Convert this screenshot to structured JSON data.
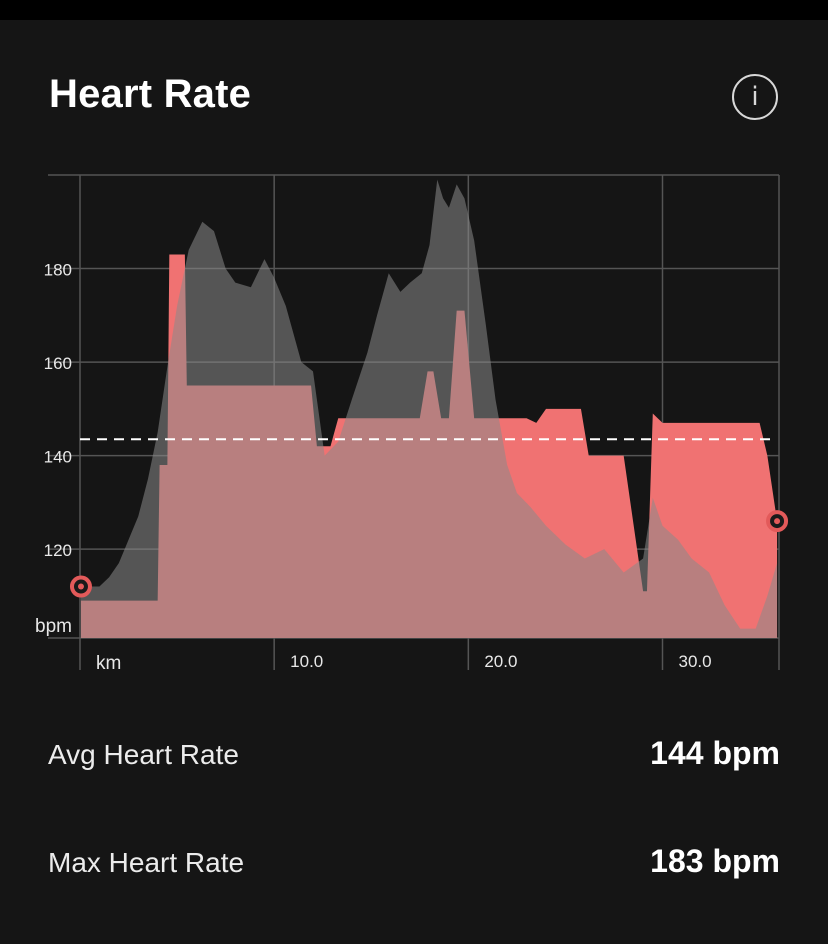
{
  "header": {
    "title": "Heart Rate",
    "info_icon": "i"
  },
  "colors": {
    "background": "#151515",
    "grid": "#555555",
    "hr_fill": "#f07272",
    "elevation_fill": "#8a8a8a",
    "avg_line": "#ffffff",
    "marker": "#e35a5a"
  },
  "chart_data": {
    "type": "area",
    "xlabel": "km",
    "ylabel": "bpm",
    "xlim": [
      0,
      36
    ],
    "ylim": [
      101,
      200
    ],
    "x_ticks": [
      10,
      20,
      30
    ],
    "x_tick_labels": [
      "10.0",
      "20.0",
      "30.0"
    ],
    "y_ticks": [
      120,
      140,
      160,
      180
    ],
    "y_tick_labels": [
      "120",
      "140",
      "160",
      "180"
    ],
    "grid": true,
    "avg_line": 143.5,
    "series": [
      {
        "role": "heart_rate",
        "x": [
          0.05,
          0.4,
          1.0,
          2.0,
          3.0,
          3.6,
          4.0,
          4.1,
          4.5,
          4.6,
          5.0,
          5.4,
          5.5,
          6.0,
          7.0,
          8.0,
          9.0,
          10.0,
          11.0,
          11.9,
          12.2,
          12.9,
          13.3,
          14.0,
          15.0,
          16.0,
          17.0,
          17.5,
          17.9,
          18.2,
          18.6,
          19.0,
          19.4,
          19.8,
          20.3,
          21.0,
          22.0,
          23.0,
          23.5,
          24.0,
          25.0,
          25.8,
          26.2,
          27.0,
          28.0,
          29.0,
          29.2,
          29.5,
          30.0,
          31.0,
          32.0,
          33.0,
          34.0,
          35.0,
          35.4,
          35.9
        ],
        "y": [
          109,
          109,
          109,
          109,
          109,
          109,
          109,
          138,
          138,
          183,
          183,
          183,
          155,
          155,
          155,
          155,
          155,
          155,
          155,
          155,
          142,
          142,
          148,
          148,
          148,
          148,
          148,
          148,
          158,
          158,
          148,
          148,
          171,
          171,
          148,
          148,
          148,
          148,
          147,
          150,
          150,
          150,
          140,
          140,
          140,
          111,
          111,
          149,
          147,
          147,
          147,
          147,
          147,
          147,
          140,
          126
        ]
      },
      {
        "role": "elevation_profile",
        "x": [
          0.05,
          0.5,
          1.0,
          1.5,
          2.0,
          2.5,
          3.0,
          3.5,
          4.0,
          4.5,
          5.0,
          5.6,
          6.3,
          6.9,
          7.5,
          8.0,
          8.8,
          9.5,
          10.0,
          10.6,
          11.4,
          12.0,
          12.6,
          13.3,
          14.0,
          14.8,
          15.3,
          15.9,
          16.5,
          17.0,
          17.6,
          18.0,
          18.4,
          18.7,
          19.0,
          19.4,
          19.8,
          20.3,
          20.9,
          21.4,
          22.0,
          22.5,
          23.2,
          24.0,
          25.0,
          26.0,
          27.0,
          28.0,
          29.0,
          29.5,
          30.0,
          30.8,
          31.5,
          32.4,
          33.2,
          34.0,
          34.8,
          35.4,
          35.9
        ],
        "y": [
          112,
          112,
          112,
          114,
          117,
          122,
          127,
          135,
          145,
          159,
          172,
          184,
          190,
          188,
          180,
          177,
          176,
          182,
          178,
          172,
          160,
          158,
          140,
          143,
          152,
          162,
          170,
          179,
          175,
          177,
          179,
          185,
          199,
          195,
          193,
          198,
          195,
          186,
          168,
          152,
          138,
          132,
          129,
          125,
          121,
          118,
          120,
          115,
          118,
          131,
          125,
          122,
          118,
          115,
          108,
          103,
          103,
          110,
          117
        ]
      }
    ],
    "start_marker": {
      "x": 0.05,
      "y": 112
    },
    "end_marker": {
      "x": 35.9,
      "y": 126
    }
  },
  "stats": {
    "avg_label": "Avg Heart Rate",
    "avg_value": "144 bpm",
    "max_label": "Max Heart Rate",
    "max_value": "183 bpm"
  }
}
